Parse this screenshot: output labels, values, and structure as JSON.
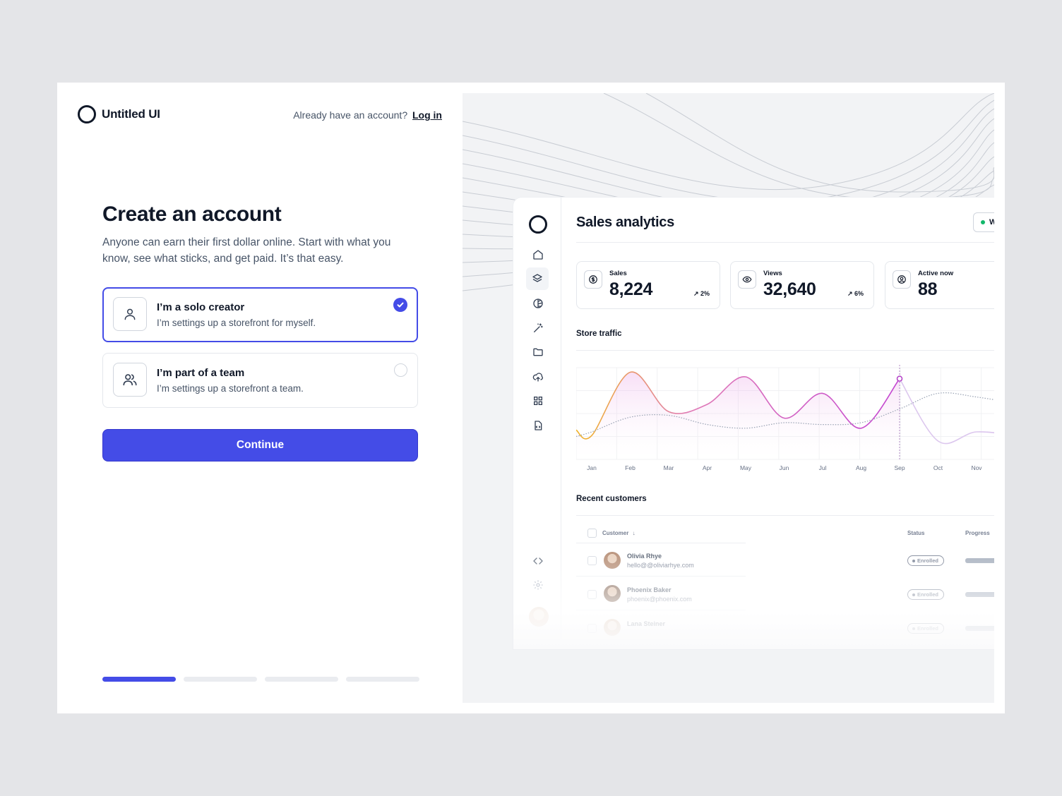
{
  "brand": {
    "name": "Untitled UI"
  },
  "header": {
    "login_prompt": "Already have an account?",
    "login_link": "Log in"
  },
  "form": {
    "title": "Create an account",
    "subtitle": "Anyone can earn their first dollar online. Start with what you know, see what sticks, and get paid. It’s that easy.",
    "options": [
      {
        "title": "I’m a solo creator",
        "description": "I’m settings up a storefront for myself.",
        "icon": "user-icon",
        "selected": true
      },
      {
        "title": "I’m part of a team",
        "description": "I’m settings up a storefront a team.",
        "icon": "users-icon",
        "selected": false
      }
    ],
    "continue_label": "Continue",
    "progress": {
      "steps": 4,
      "current": 1
    }
  },
  "colors": {
    "accent": "#444ce7",
    "text": "#101828",
    "muted": "#475467",
    "background": "#e4e5e8",
    "success": "#12b76a"
  },
  "dashboard": {
    "title": "Sales analytics",
    "status_chip": "W",
    "nav_icons": [
      "home-icon",
      "layers-icon",
      "pie-chart-icon",
      "magic-wand-icon",
      "folder-icon",
      "upload-cloud-icon",
      "grid-icon",
      "file-icon",
      "code-icon",
      "settings-icon"
    ],
    "stats": [
      {
        "label": "Sales",
        "value": "8,224",
        "change": "2%",
        "icon": "currency-icon"
      },
      {
        "label": "Views",
        "value": "32,640",
        "change": "6%",
        "icon": "eye-icon"
      },
      {
        "label": "Active now",
        "value": "88",
        "icon": "user-circle-icon"
      }
    ],
    "traffic_title": "Store traffic",
    "customers_title": "Recent customers",
    "table": {
      "headers": {
        "customer": "Customer",
        "status": "Status",
        "progress": "Progress"
      },
      "rows": [
        {
          "name": "Olivia Rhye",
          "email": "hello@@oliviarhye.com",
          "status": "Enrolled"
        },
        {
          "name": "Phoenix Baker",
          "email": "phoenix@phoenix.com",
          "status": "Enrolled"
        },
        {
          "name": "Lana Steiner",
          "email": "",
          "status": "Enrolled"
        }
      ]
    }
  },
  "chart_data": {
    "type": "area",
    "title": "Store traffic",
    "categories": [
      "Jan",
      "Feb",
      "Mar",
      "Apr",
      "May",
      "Jun",
      "Jul",
      "Aug",
      "Sep",
      "Oct",
      "Nov"
    ],
    "series": [
      {
        "values": [
          0.26,
          0.95,
          0.52,
          0.6,
          0.9,
          0.45,
          0.72,
          0.34,
          0.88,
          0.2,
          0.3
        ],
        "values_note_removed": true
      },
      {
        "values": [
          0.3,
          0.46,
          0.48,
          0.38,
          0.34,
          0.4,
          0.38,
          0.4,
          0.55,
          0.72,
          0.68
        ]
      }
    ],
    "highlight_index": 8,
    "xlabel": "",
    "ylabel": "",
    "ylim": [
      0,
      1
    ],
    "grid": true
  }
}
